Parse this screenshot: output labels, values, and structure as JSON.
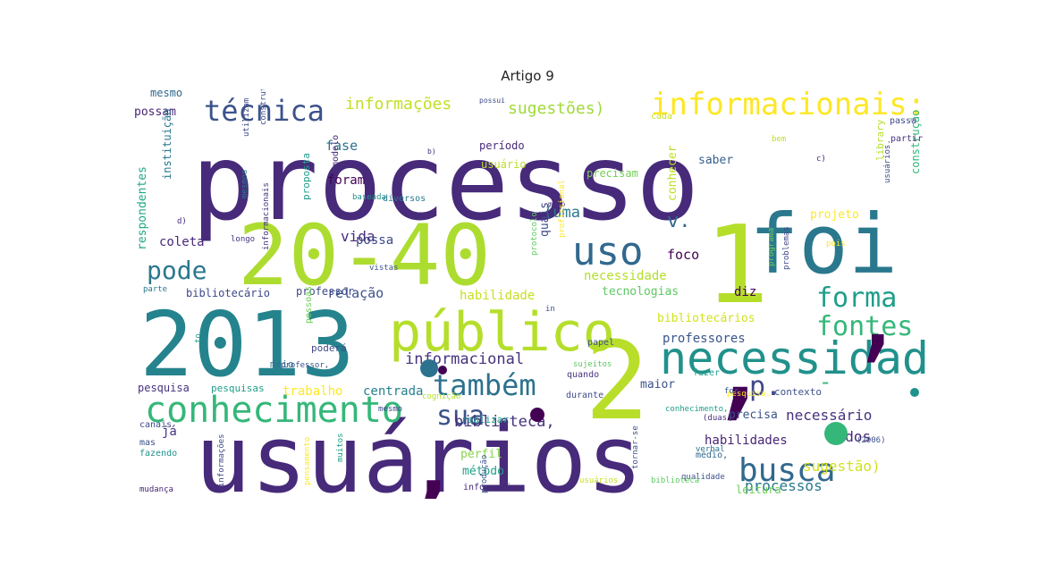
{
  "title": "Artigo 9",
  "word_cloud": {
    "words": [
      {
        "text": "processo",
        "color": "#472a7a"
      },
      {
        "text": "usuários",
        "color": "#472a7a"
      },
      {
        "text": "2013",
        "color": "#25838e"
      },
      {
        "text": "20-40",
        "color": "#addc30"
      },
      {
        "text": "1",
        "color": "#b5de2b"
      },
      {
        "text": "2",
        "color": "#b8de29"
      },
      {
        "text": "foi",
        "color": "#2a788e"
      },
      {
        "text": "público",
        "color": "#b5de2b"
      },
      {
        "text": "necessidades",
        "color": "#21918c"
      },
      {
        "text": "conhecimento",
        "color": "#35b779"
      },
      {
        "text": "busca",
        "color": "#31688e"
      },
      {
        "text": "uso",
        "color": "#31688e"
      },
      {
        "text": "técnica",
        "color": "#3b528b"
      },
      {
        "text": "informacionais:",
        "color": "#fde725"
      },
      {
        "text": "pode",
        "color": "#2a788e"
      },
      {
        "text": "forma",
        "color": "#1f9e89"
      },
      {
        "text": "fontes",
        "color": "#35b779"
      },
      {
        "text": "também",
        "color": "#2c728e"
      },
      {
        "text": "sua",
        "color": "#3b528b"
      },
      {
        "text": "p.",
        "color": "#3e4989"
      },
      {
        "text": ",",
        "color": "#440154"
      },
      {
        "text": ",",
        "color": "#440154"
      },
      {
        "text": ",",
        "color": "#440154"
      },
      {
        "text": "-",
        "color": "#35b779"
      },
      {
        "text": "informações",
        "color": "#c2df23"
      },
      {
        "text": "sugestões)",
        "color": "#a0da39"
      },
      {
        "text": "informacional",
        "color": "#46327e"
      },
      {
        "text": "biblioteca,",
        "color": "#46327e"
      },
      {
        "text": "necessário",
        "color": "#46327e"
      },
      {
        "text": "professores",
        "color": "#39568c"
      },
      {
        "text": "processos",
        "color": "#2a788e"
      },
      {
        "text": "sugestão)",
        "color": "#d0e11c"
      },
      {
        "text": "habilidades",
        "color": "#482475"
      },
      {
        "text": "todos",
        "color": "#482878"
      },
      {
        "text": "relação",
        "color": "#3b528b"
      },
      {
        "text": "trabalho",
        "color": "#fde725"
      },
      {
        "text": "centrada",
        "color": "#277f8e"
      },
      {
        "text": "v.",
        "color": "#31688e"
      },
      {
        "text": "(uma",
        "color": "#2a788e"
      },
      {
        "text": "vida",
        "color": "#472d7b"
      },
      {
        "text": "possa",
        "color": "#3e4989"
      },
      {
        "text": "coleta",
        "color": "#482878"
      },
      {
        "text": "foco",
        "color": "#440154"
      },
      {
        "text": "fase",
        "color": "#2c728e"
      },
      {
        "text": "foram",
        "color": "#440154"
      },
      {
        "text": "possam",
        "color": "#482475"
      },
      {
        "text": "mesmo",
        "color": "#31688e"
      },
      {
        "text": "período",
        "color": "#472a7a"
      },
      {
        "text": "precisam",
        "color": "#75d054"
      },
      {
        "text": "usuário",
        "color": "#bddf26"
      },
      {
        "text": "saber",
        "color": "#355f8d"
      },
      {
        "text": "projeto",
        "color": "#fde725"
      },
      {
        "text": "necessidade",
        "color": "#b5de2b"
      },
      {
        "text": "habilidade",
        "color": "#c8e020"
      },
      {
        "text": "tecnologias",
        "color": "#5ec962"
      },
      {
        "text": "diz",
        "color": "#440154"
      },
      {
        "text": "bibliotecários",
        "color": "#d2e21b"
      },
      {
        "text": "bibliotecário",
        "color": "#3e4989"
      },
      {
        "text": "professor",
        "color": "#3e4989"
      },
      {
        "text": "perfil",
        "color": "#86d549"
      },
      {
        "text": "método",
        "color": "#1fa088"
      },
      {
        "text": "leitura",
        "color": "#6ece58"
      },
      {
        "text": "precisa",
        "color": "#3b528b"
      },
      {
        "text": "maior",
        "color": "#3b528b"
      },
      {
        "text": "pesquisa",
        "color": "#46337f"
      },
      {
        "text": "pesquisas",
        "color": "#1f9e89"
      },
      {
        "text": "já",
        "color": "#46337f"
      },
      {
        "text": "realizar",
        "color": "#1f9e89"
      },
      {
        "text": "indivíduo",
        "color": "#31688e"
      },
      {
        "text": "construção",
        "color": "#35b779"
      },
      {
        "text": "conhecer",
        "color": "#bddf26"
      },
      {
        "text": "library",
        "color": "#b5de2b"
      },
      {
        "text": "quais",
        "color": "#3e4989"
      },
      {
        "text": "respondentes",
        "color": "#22a884"
      },
      {
        "text": "instituição",
        "color": "#2a788e"
      },
      {
        "text": "proposta",
        "color": "#1f9e89"
      },
      {
        "text": "modelo",
        "color": "#472d7b"
      },
      {
        "text": "pessoas",
        "color": "#6ece58"
      },
      {
        "text": "poderá",
        "color": "#3e4989"
      },
      {
        "text": "meio",
        "color": "#2c728e"
      },
      {
        "text": "papel",
        "color": "#3b528b"
      },
      {
        "text": "contexto",
        "color": "#3b528b"
      },
      {
        "text": "passa",
        "color": "#3e4989"
      },
      {
        "text": "partir",
        "color": "#46337f"
      },
      {
        "text": "durante",
        "color": "#3e4989"
      },
      {
        "text": "quando",
        "color": "#46327e"
      },
      {
        "text": "fazer",
        "color": "#1f9e89"
      },
      {
        "text": "cada",
        "color": "#cae11f"
      },
      {
        "text": "bem",
        "color": "#bddf26"
      },
      {
        "text": "diversas",
        "color": "#440154"
      },
      {
        "text": "diversos",
        "color": "#287c8e"
      },
      {
        "text": "médio,",
        "color": "#31688e"
      },
      {
        "text": "canais",
        "color": "#3e4989"
      },
      {
        "text": "mas",
        "color": "#3b528b"
      },
      {
        "text": "fazendo",
        "color": "#21918c"
      },
      {
        "text": "mudança",
        "color": "#482475"
      },
      {
        "text": "information",
        "color": "#472a7a"
      },
      {
        "text": "verbal",
        "color": "#2c728e"
      },
      {
        "text": "(2006)",
        "color": "#3b528b"
      },
      {
        "text": "c)",
        "color": "#482878"
      },
      {
        "text": "b)",
        "color": "#472d7b"
      },
      {
        "text": "d)",
        "color": "#472a7a"
      },
      {
        "text": "pois",
        "color": "#fde725"
      },
      {
        "text": "possui",
        "color": "#3e4989"
      },
      {
        "text": "modo",
        "color": "#46327e"
      },
      {
        "text": "longo",
        "color": "#46327e"
      },
      {
        "text": "vistas",
        "color": "#3b528b"
      },
      {
        "text": "parte",
        "color": "#2a788e"
      },
      {
        "text": "mesmos",
        "color": "#2a788e"
      },
      {
        "text": "utilizam",
        "color": "#3e4989"
      },
      {
        "text": "construtivista",
        "color": "#3e4989"
      },
      {
        "text": "informacionais",
        "color": "#46327e"
      },
      {
        "text": "profissional",
        "color": "#fde725"
      },
      {
        "text": "protocolo",
        "color": "#5ec962"
      },
      {
        "text": "baseada",
        "color": "#21918c"
      },
      {
        "text": "conhecimento,",
        "color": "#1f9e89"
      },
      {
        "text": "usuários.",
        "color": "#3e4989"
      },
      {
        "text": "resolver",
        "color": "#3e4989"
      },
      {
        "text": "mundo",
        "color": "#21918c"
      },
      {
        "text": "pesquisa.",
        "color": "#fde725"
      },
      {
        "text": "qualidade",
        "color": "#3b528b"
      },
      {
        "text": "tornar-se",
        "color": "#3b528b"
      },
      {
        "text": "sujeitos",
        "color": "#5ec962"
      },
      {
        "text": "problemas",
        "color": "#3e4989"
      },
      {
        "text": "programa",
        "color": "#6ece58"
      },
      {
        "text": "produção",
        "color": "#3b528b"
      },
      {
        "text": "muitos",
        "color": "#1fa088"
      },
      {
        "text": "pensamento",
        "color": "#fde725"
      },
      {
        "text": "cognição",
        "color": "#b5de2b"
      },
      {
        "text": "mesmo",
        "color": "#3e4989"
      },
      {
        "text": "(duas",
        "color": "#46327e"
      },
      {
        "text": "for",
        "color": "#3b528b"
      },
      {
        "text": "in",
        "color": "#3b528b"
      },
      {
        "text": "to",
        "color": "#1f9e89"
      },
      {
        "text": "professor,",
        "color": "#3b528b"
      },
      {
        "text": "informações",
        "color": "#3e4989"
      },
      {
        "text": "usuários",
        "color": "#c8e020"
      },
      {
        "text": "biblioteca",
        "color": "#5ec962"
      }
    ],
    "marks": [
      {
        "name": "dot-1",
        "color": "#2c728e"
      },
      {
        "name": "dot-2",
        "color": "#35b779"
      },
      {
        "name": "dot-3",
        "color": "#440154"
      },
      {
        "name": "dot-4",
        "color": "#440154"
      },
      {
        "name": "dot-5",
        "color": "#21918c"
      }
    ]
  }
}
